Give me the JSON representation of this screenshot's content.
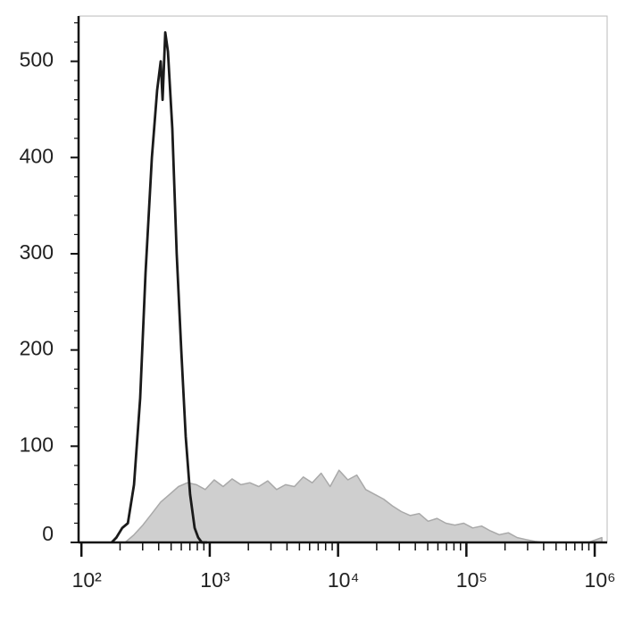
{
  "chart_data": {
    "type": "line",
    "xscale": "log",
    "xlim": [
      95,
      1250000
    ],
    "ylim": [
      0,
      547
    ],
    "xticks": [
      {
        "value": 100,
        "label": "10²"
      },
      {
        "value": 1000,
        "label": "10³"
      },
      {
        "value": 10000,
        "label": "10⁴"
      },
      {
        "value": 100000,
        "label": "10⁵"
      },
      {
        "value": 1000000,
        "label": "10⁶"
      }
    ],
    "xminorticks": [
      200,
      300,
      400,
      500,
      600,
      700,
      800,
      900,
      2000,
      3000,
      4000,
      5000,
      6000,
      7000,
      8000,
      9000,
      20000,
      30000,
      40000,
      50000,
      60000,
      70000,
      80000,
      90000,
      200000,
      300000,
      400000,
      500000,
      600000,
      700000,
      800000,
      900000
    ],
    "yticks": [
      0,
      100,
      200,
      300,
      400,
      500
    ],
    "yminorticks": [
      20,
      40,
      60,
      80,
      120,
      140,
      160,
      180,
      220,
      240,
      260,
      280,
      320,
      340,
      360,
      380,
      420,
      440,
      460,
      480,
      520,
      540
    ],
    "series": [
      {
        "color": "#a9a9a9",
        "fill": "#cfcfcf",
        "x": [
          219,
          257,
          301,
          354,
          415,
          487,
          571,
          670,
          787,
          923,
          1083,
          1271,
          1492,
          1750,
          2054,
          2410,
          2828,
          3318,
          3893,
          4569,
          5361,
          6291,
          7382,
          8662,
          10164,
          11927,
          13996,
          16422,
          19270,
          22613,
          26535,
          31136,
          36535,
          42873,
          50308,
          59032,
          69268,
          81281,
          95376,
          111918,
          131326,
          154103,
          180829,
          212190,
          248990,
          292173,
          342845,
          402305,
          472079,
          649382,
          893213,
          1137000
        ],
        "values": [
          0,
          8,
          18,
          30,
          42,
          50,
          58,
          62,
          60,
          55,
          65,
          58,
          66,
          60,
          62,
          58,
          64,
          55,
          60,
          58,
          68,
          62,
          72,
          58,
          75,
          65,
          70,
          55,
          50,
          45,
          38,
          32,
          28,
          30,
          22,
          25,
          20,
          18,
          20,
          15,
          17,
          12,
          8,
          10,
          5,
          3,
          1,
          0,
          0,
          0,
          0,
          5
        ]
      },
      {
        "color": "#1a1a1a",
        "x": [
          172,
          187,
          208,
          230,
          257,
          287,
          316,
          354,
          389,
          415,
          429,
          450,
          472,
          511,
          553,
          600,
          650,
          703,
          762,
          813,
          867,
          953
        ],
        "values": [
          0,
          5,
          15,
          20,
          60,
          150,
          280,
          400,
          470,
          500,
          460,
          530,
          510,
          430,
          300,
          200,
          110,
          50,
          15,
          5,
          0,
          0
        ]
      }
    ]
  }
}
